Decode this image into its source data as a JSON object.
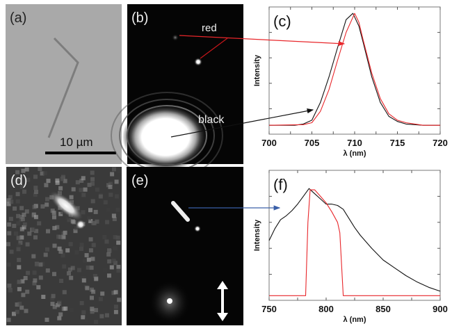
{
  "panels": {
    "a": {
      "label": "(a)",
      "scale_bar": "10 µm"
    },
    "b": {
      "label": "(b)",
      "annotation_red": "red",
      "annotation_black": "black"
    },
    "d": {
      "label": "(d)"
    },
    "e": {
      "label": "(e)"
    }
  },
  "colors": {
    "red": "#e8262a",
    "black": "#111111",
    "blue": "#3a5fa8"
  },
  "chart_data": [
    {
      "id": "c",
      "type": "line",
      "label": "(c)",
      "xlabel": "λ (nm)",
      "ylabel": "Intensity",
      "xlim": [
        700,
        720
      ],
      "ylim": [
        0,
        1
      ],
      "xticks": [
        700,
        705,
        710,
        715,
        720
      ],
      "xtick_labels": [
        "700",
        "705",
        "710",
        "715",
        "720"
      ],
      "grid": false,
      "series": [
        {
          "name": "black",
          "color": "#111111",
          "x": [
            700,
            703,
            704,
            705,
            706,
            707,
            708,
            709,
            709.8,
            710.5,
            711,
            712,
            713,
            714,
            715,
            716,
            718,
            720
          ],
          "y": [
            0.07,
            0.07,
            0.08,
            0.11,
            0.25,
            0.45,
            0.68,
            0.9,
            0.95,
            0.85,
            0.72,
            0.45,
            0.25,
            0.14,
            0.1,
            0.08,
            0.07,
            0.07
          ]
        },
        {
          "name": "red",
          "color": "#e8262a",
          "x": [
            700,
            704,
            705,
            706,
            707,
            708,
            709,
            710,
            710.5,
            711,
            712,
            713,
            714,
            715,
            716,
            718,
            720
          ],
          "y": [
            0.07,
            0.075,
            0.09,
            0.18,
            0.35,
            0.58,
            0.8,
            0.95,
            0.88,
            0.74,
            0.48,
            0.28,
            0.16,
            0.11,
            0.09,
            0.07,
            0.07
          ]
        }
      ]
    },
    {
      "id": "f",
      "type": "line",
      "label": "(f)",
      "xlabel": "λ (nm)",
      "ylabel": "Intensity",
      "xlim": [
        750,
        900
      ],
      "ylim": [
        0,
        1
      ],
      "xticks": [
        750,
        800,
        850,
        900
      ],
      "xtick_labels": [
        "750",
        "800",
        "850",
        "900"
      ],
      "grid": false,
      "series": [
        {
          "name": "black",
          "color": "#111111",
          "x": [
            750,
            755,
            760,
            765,
            770,
            775,
            780,
            785,
            790,
            795,
            800,
            805,
            810,
            815,
            820,
            825,
            830,
            840,
            850,
            860,
            870,
            880,
            890,
            900
          ],
          "y": [
            0.46,
            0.55,
            0.62,
            0.65,
            0.69,
            0.74,
            0.8,
            0.86,
            0.82,
            0.78,
            0.74,
            0.74,
            0.73,
            0.7,
            0.63,
            0.56,
            0.5,
            0.4,
            0.31,
            0.25,
            0.19,
            0.14,
            0.1,
            0.07
          ]
        },
        {
          "name": "red",
          "color": "#e8262a",
          "x": [
            750,
            782,
            784,
            786,
            790,
            795,
            800,
            805,
            810,
            812,
            815,
            900
          ],
          "y": [
            0.036,
            0.036,
            0.6,
            0.85,
            0.85,
            0.8,
            0.75,
            0.68,
            0.6,
            0.52,
            0.036,
            0.036
          ]
        }
      ]
    }
  ]
}
